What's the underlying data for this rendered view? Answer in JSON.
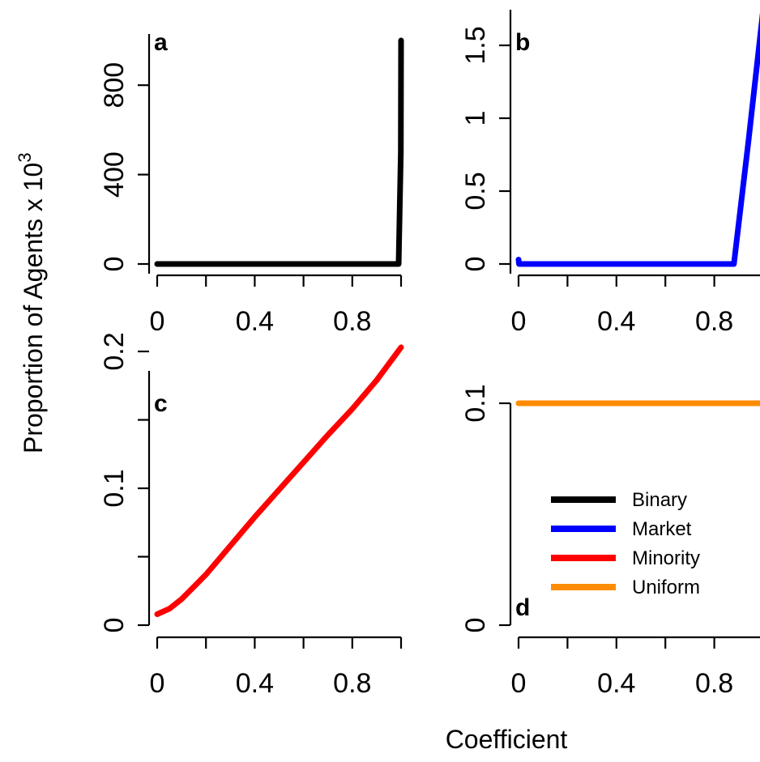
{
  "figure": {
    "ylabel_main": "Proportion of Agents x 10",
    "ylabel_exponent": "3",
    "xlabel": "Coefficient"
  },
  "legend": {
    "placement": "center-right of panel d",
    "entries": [
      {
        "label": "Binary",
        "color": "#000000"
      },
      {
        "label": "Market",
        "color": "#0000ff"
      },
      {
        "label": "Minority",
        "color": "#ff0000"
      },
      {
        "label": "Uniform",
        "color": "#ff8c00"
      }
    ]
  },
  "chart_data": [
    {
      "type": "line",
      "panel": "a",
      "color": "#000000",
      "xlim": [
        0,
        1
      ],
      "ylim": [
        0,
        1000
      ],
      "xticks": [
        0,
        0.2,
        0.4,
        0.6,
        0.8,
        1.0
      ],
      "xtick_labels": [
        {
          "v": 0,
          "t": "0"
        },
        {
          "v": 0.4,
          "t": "0.4"
        },
        {
          "v": 0.8,
          "t": "0.8"
        }
      ],
      "yticks": [
        {
          "v": 0,
          "t": "0"
        },
        {
          "v": 400,
          "t": "400"
        },
        {
          "v": 800,
          "t": "800"
        }
      ],
      "x": [
        0,
        0.2,
        0.4,
        0.6,
        0.8,
        0.99,
        0.999,
        1.0
      ],
      "y": [
        0,
        0,
        0,
        0,
        0,
        0,
        500,
        1000
      ]
    },
    {
      "type": "line",
      "panel": "b",
      "color": "#0000ff",
      "xlim": [
        0,
        1
      ],
      "ylim": [
        0,
        1.7
      ],
      "xticks": [
        0,
        0.2,
        0.4,
        0.6,
        0.8,
        1.0
      ],
      "xtick_labels": [
        {
          "v": 0,
          "t": "0"
        },
        {
          "v": 0.4,
          "t": "0.4"
        },
        {
          "v": 0.8,
          "t": "0.8"
        }
      ],
      "yticks": [
        {
          "v": 0,
          "t": "0"
        },
        {
          "v": 0.5,
          "t": "0.5"
        },
        {
          "v": 1,
          "t": "1"
        },
        {
          "v": 1.5,
          "t": "1.5"
        }
      ],
      "x": [
        0,
        0.002,
        0.01,
        0.2,
        0.4,
        0.6,
        0.8,
        0.88,
        0.94,
        1.0
      ],
      "y": [
        0.03,
        0.0,
        0.0,
        0,
        0,
        0,
        0,
        0,
        0.85,
        1.75
      ]
    },
    {
      "type": "line",
      "panel": "c",
      "color": "#ff0000",
      "xlim": [
        0,
        1
      ],
      "ylim": [
        0,
        0.2
      ],
      "xticks": [
        0,
        0.2,
        0.4,
        0.6,
        0.8,
        1.0
      ],
      "xtick_labels": [
        {
          "v": 0,
          "t": "0"
        },
        {
          "v": 0.4,
          "t": "0.4"
        },
        {
          "v": 0.8,
          "t": "0.8"
        }
      ],
      "yticks": [
        {
          "v": 0,
          "t": "0"
        },
        {
          "v": 0.05,
          "t": ""
        },
        {
          "v": 0.1,
          "t": "0.1"
        },
        {
          "v": 0.15,
          "t": ""
        },
        {
          "v": 0.2,
          "t": "0.2"
        }
      ],
      "x": [
        0,
        0.05,
        0.1,
        0.15,
        0.2,
        0.3,
        0.4,
        0.5,
        0.6,
        0.7,
        0.8,
        0.9,
        1.0
      ],
      "y": [
        0.008,
        0.012,
        0.019,
        0.028,
        0.037,
        0.058,
        0.079,
        0.099,
        0.119,
        0.139,
        0.158,
        0.179,
        0.203
      ]
    },
    {
      "type": "line",
      "panel": "d",
      "color": "#ff8c00",
      "xlim": [
        0,
        1
      ],
      "ylim": [
        0,
        0.1
      ],
      "xticks": [
        0,
        0.2,
        0.4,
        0.6,
        0.8,
        1.0
      ],
      "xtick_labels": [
        {
          "v": 0,
          "t": "0"
        },
        {
          "v": 0.4,
          "t": "0.4"
        },
        {
          "v": 0.8,
          "t": "0.8"
        }
      ],
      "yticks": [
        {
          "v": 0,
          "t": "0"
        },
        {
          "v": 0.1,
          "t": "0.1"
        }
      ],
      "x": [
        0,
        1.0
      ],
      "y": [
        0.1,
        0.1
      ]
    }
  ]
}
